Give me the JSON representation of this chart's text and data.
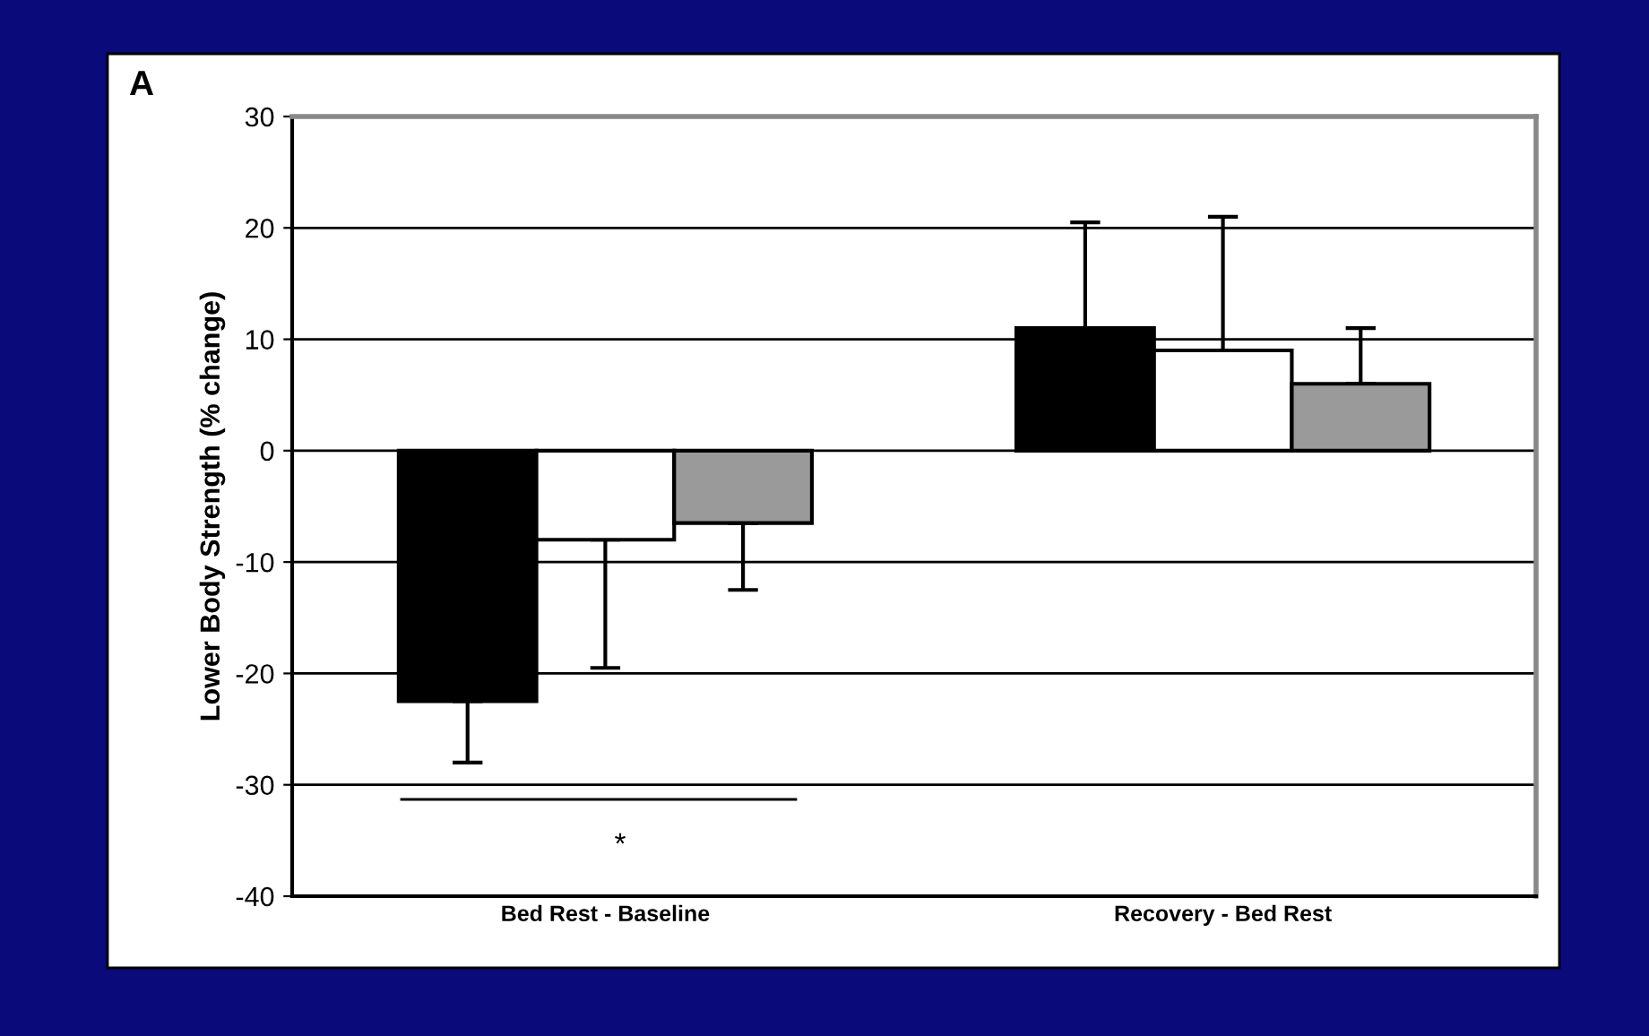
{
  "chart_data": {
    "type": "bar",
    "ylabel": "Lower Body Strength (% change)",
    "categories": [
      "Bed Rest - Baseline",
      "Recovery - Bed Rest"
    ],
    "series": [
      {
        "color": "#000000",
        "values": [
          -22.5,
          11
        ],
        "errors": [
          [
            -28,
            -22.5
          ],
          [
            11,
            20.5
          ]
        ]
      },
      {
        "color": "#ffffff",
        "values": [
          -8,
          9
        ],
        "errors": [
          [
            -19.5,
            -8
          ],
          [
            9,
            21
          ]
        ]
      },
      {
        "color": "#9a9a9a",
        "values": [
          -6.5,
          6
        ],
        "errors": [
          [
            -12.5,
            -6.5
          ],
          [
            6,
            11
          ]
        ]
      }
    ],
    "ylim": [
      -40,
      30
    ],
    "yticks": [
      -40,
      -30,
      -20,
      -10,
      0,
      10,
      20,
      30
    ],
    "grid": "y",
    "legend": false,
    "annotations": [
      "A",
      "*"
    ]
  }
}
